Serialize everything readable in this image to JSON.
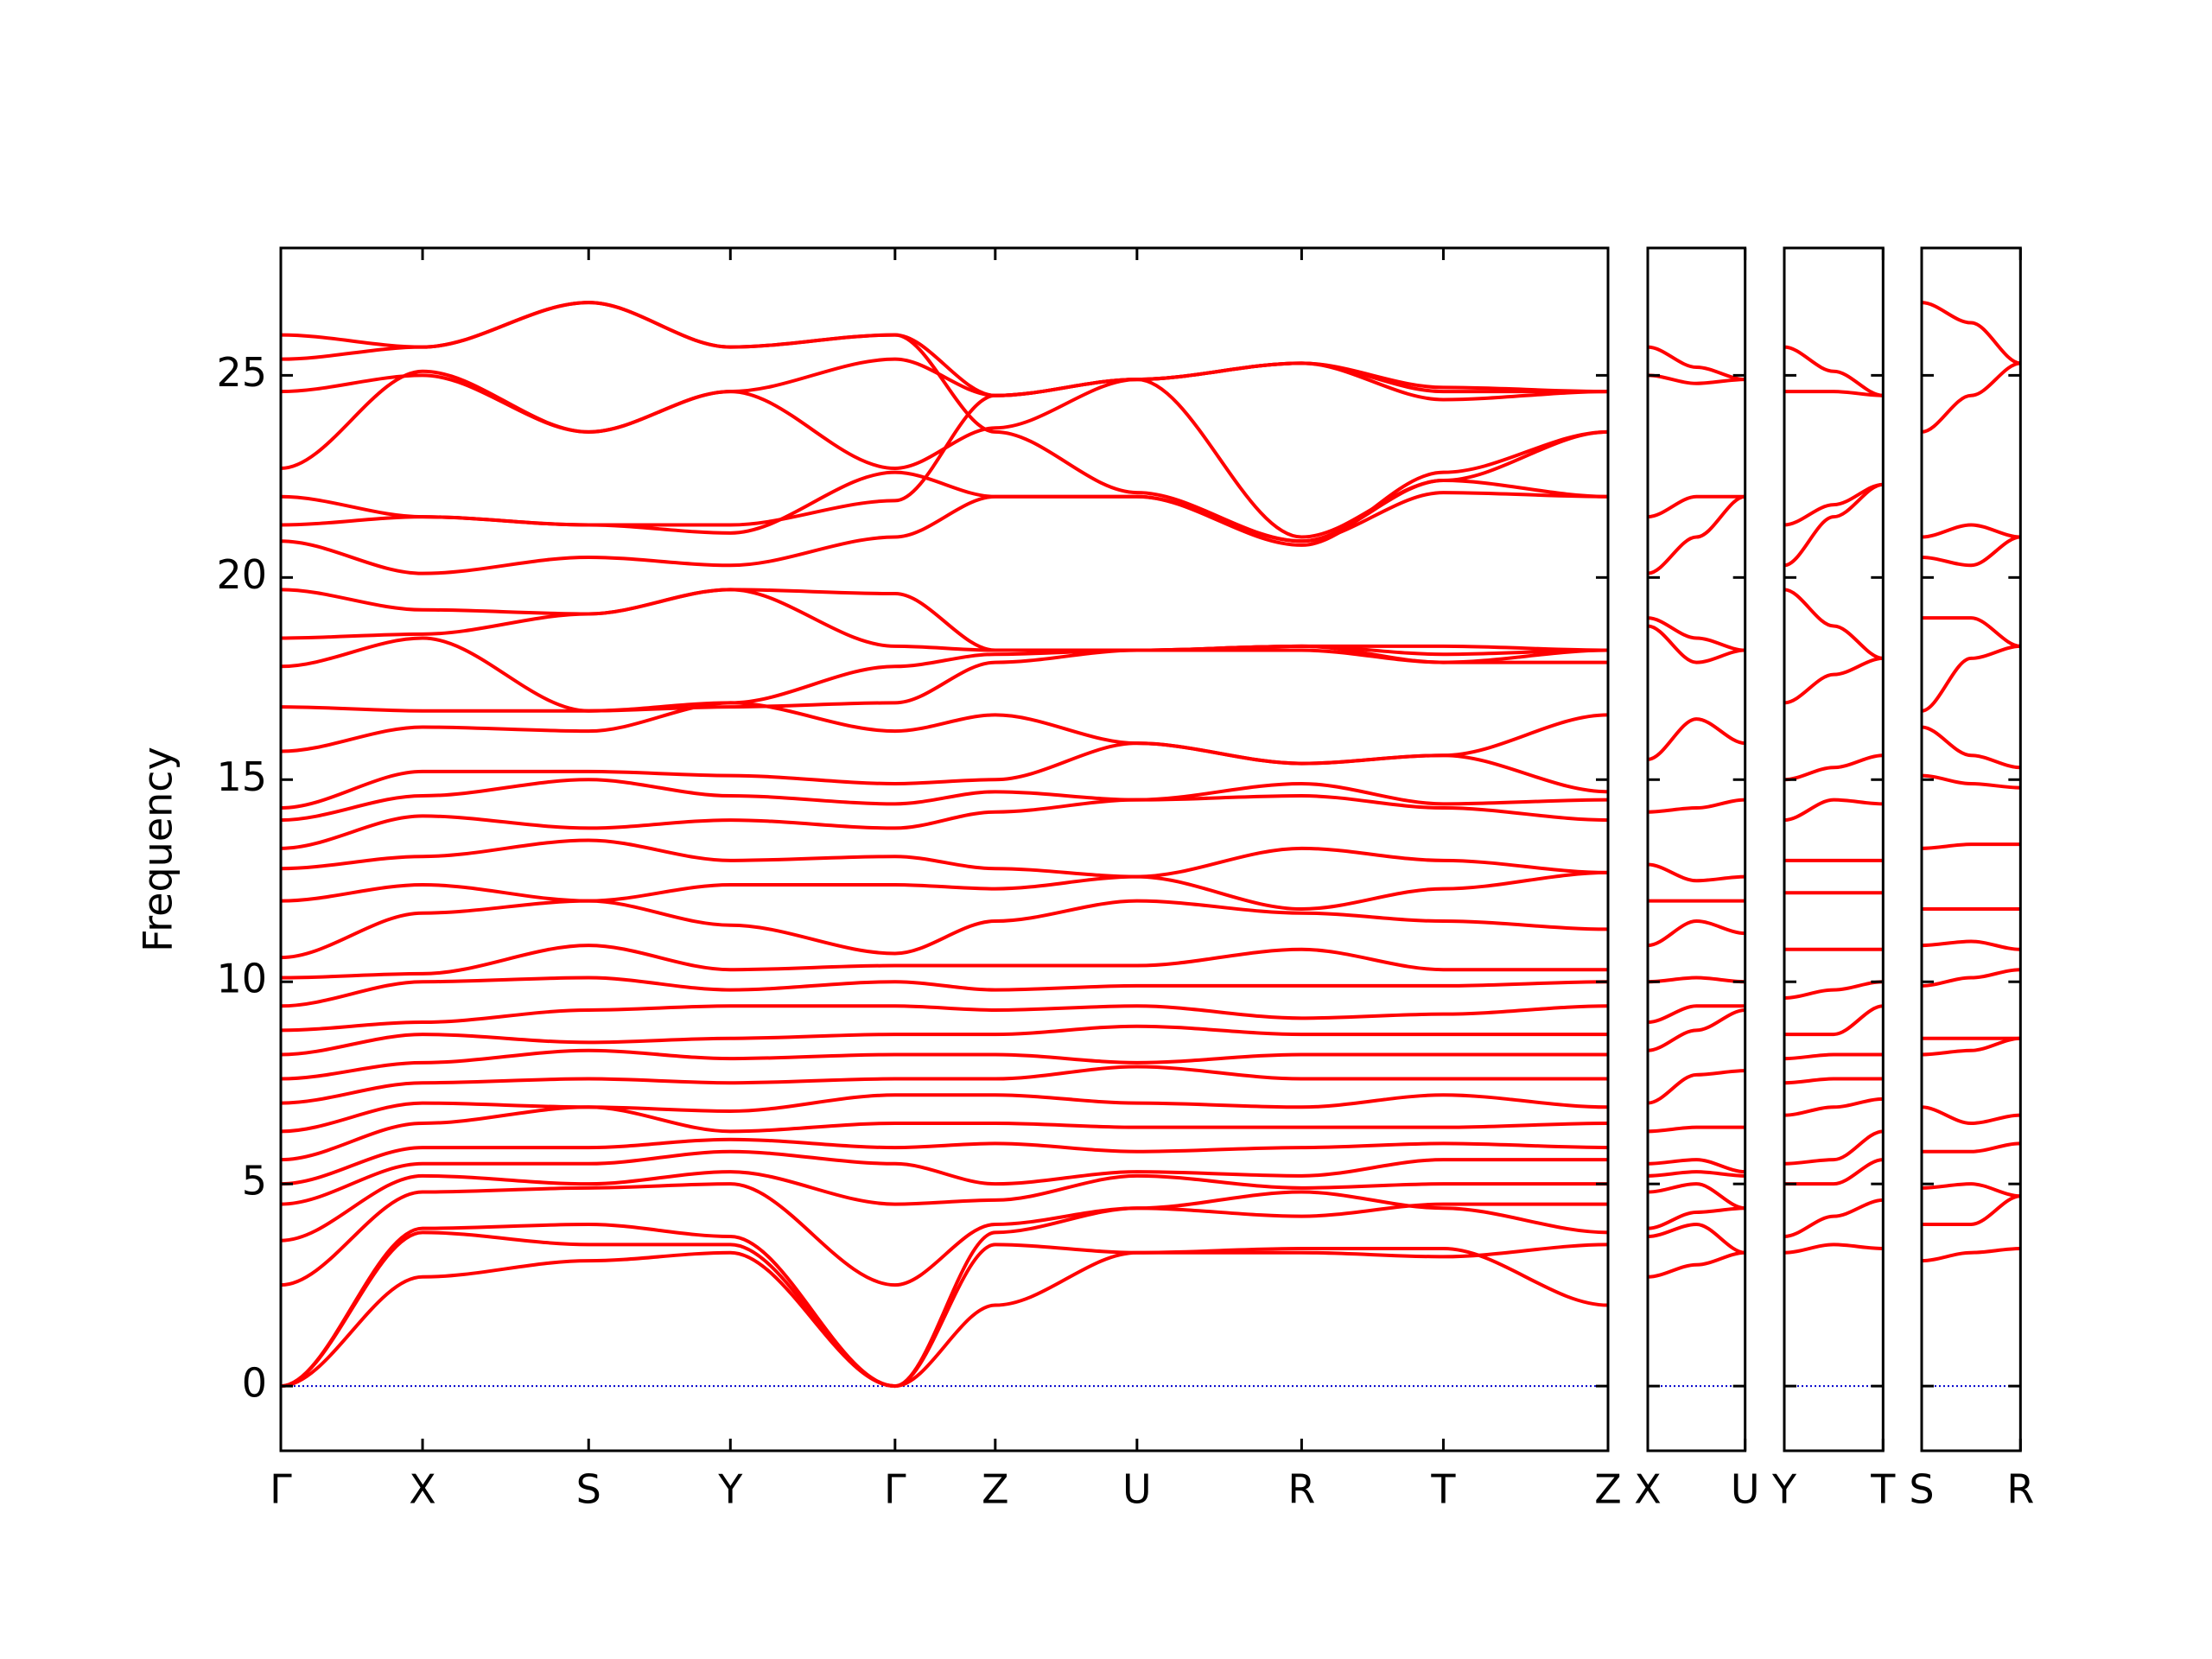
{
  "chart_data": [
    {
      "type": "line",
      "ylabel": "Frequency",
      "color": "#ff0000",
      "zero_line_color": "#0000cc",
      "ytick_labels": true,
      "x": [
        0,
        0.99,
        2.15,
        3.14,
        4.29,
        4.99,
        5.98,
        7.13,
        8.12,
        9.27
      ],
      "xlim": [
        0,
        9.27
      ],
      "ylim": [
        -1.6,
        28.15
      ],
      "yticks": [
        0,
        5,
        10,
        15,
        20,
        25
      ],
      "xticks": [
        {
          "value": 0,
          "label": "Γ"
        },
        {
          "value": 0.99,
          "label": "X"
        },
        {
          "value": 2.15,
          "label": "S"
        },
        {
          "value": 3.14,
          "label": "Y"
        },
        {
          "value": 4.29,
          "label": "Γ"
        },
        {
          "value": 4.99,
          "label": "Z"
        },
        {
          "value": 5.98,
          "label": "U"
        },
        {
          "value": 7.13,
          "label": "R"
        },
        {
          "value": 8.12,
          "label": "T"
        },
        {
          "value": 9.27,
          "label": "Z"
        }
      ],
      "series": [
        {
          "values": [
            0,
            2.7,
            3.1,
            3.3,
            0,
            2.0,
            3.3,
            3.4,
            3.4,
            2.0
          ]
        },
        {
          "values": [
            0,
            3.8,
            3.5,
            3.5,
            0,
            3.5,
            3.3,
            3.3,
            3.2,
            3.5
          ]
        },
        {
          "values": [
            0,
            3.9,
            4.0,
            3.7,
            0,
            3.8,
            4.4,
            4.8,
            4.4,
            3.8
          ]
        },
        {
          "values": [
            2.5,
            4.8,
            4.9,
            5.0,
            2.5,
            4.0,
            4.4,
            4.2,
            4.5,
            4.5
          ]
        },
        {
          "values": [
            3.6,
            5.2,
            5.0,
            5.3,
            4.5,
            4.6,
            5.2,
            4.9,
            5.0,
            5.0
          ]
        },
        {
          "values": [
            4.5,
            5.5,
            5.5,
            5.8,
            5.5,
            5.0,
            5.3,
            5.2,
            5.6,
            5.6
          ]
        },
        {
          "values": [
            5.0,
            5.9,
            5.9,
            6.1,
            5.9,
            6.0,
            5.8,
            5.9,
            6.0,
            5.9
          ]
        },
        {
          "values": [
            5.6,
            6.5,
            6.9,
            6.3,
            6.5,
            6.5,
            6.4,
            6.4,
            6.4,
            6.5
          ]
        },
        {
          "values": [
            6.3,
            7.0,
            6.9,
            6.8,
            7.2,
            7.2,
            7.0,
            6.9,
            7.2,
            6.9
          ]
        },
        {
          "values": [
            7.0,
            7.5,
            7.6,
            7.5,
            7.6,
            7.6,
            7.9,
            7.6,
            7.6,
            7.6
          ]
        },
        {
          "values": [
            7.6,
            8.0,
            8.3,
            8.1,
            8.2,
            8.2,
            8.0,
            8.2,
            8.2,
            8.2
          ]
        },
        {
          "values": [
            8.2,
            8.7,
            8.5,
            8.6,
            8.7,
            8.7,
            8.9,
            8.7,
            8.7,
            8.7
          ]
        },
        {
          "values": [
            8.8,
            9.0,
            9.3,
            9.4,
            9.4,
            9.3,
            9.4,
            9.1,
            9.2,
            9.4
          ]
        },
        {
          "values": [
            9.4,
            10.0,
            10.1,
            9.8,
            10.0,
            9.8,
            9.9,
            9.9,
            9.9,
            10.0
          ]
        },
        {
          "values": [
            10.1,
            10.2,
            10.9,
            10.3,
            10.4,
            10.4,
            10.4,
            10.8,
            10.3,
            10.3
          ]
        },
        {
          "values": [
            10.6,
            11.7,
            12.0,
            11.4,
            10.7,
            11.5,
            12.0,
            11.7,
            11.5,
            11.3
          ]
        },
        {
          "values": [
            12.0,
            12.4,
            12.0,
            12.4,
            12.4,
            12.3,
            12.6,
            11.8,
            12.3,
            12.7
          ]
        },
        {
          "values": [
            12.8,
            13.1,
            13.5,
            13.0,
            13.1,
            12.8,
            12.6,
            13.3,
            13.0,
            12.7
          ]
        },
        {
          "values": [
            13.3,
            14.1,
            13.8,
            14.0,
            13.8,
            14.2,
            14.5,
            14.6,
            14.3,
            14.0
          ]
        },
        {
          "values": [
            14.0,
            14.6,
            15.0,
            14.6,
            14.4,
            14.7,
            14.5,
            14.9,
            14.4,
            14.5
          ]
        },
        {
          "values": [
            14.3,
            15.2,
            15.2,
            15.1,
            14.9,
            15.0,
            15.9,
            15.4,
            15.6,
            14.7
          ]
        },
        {
          "values": [
            15.7,
            16.3,
            16.2,
            16.9,
            16.2,
            16.6,
            15.9,
            15.4,
            15.6,
            16.6
          ]
        },
        {
          "values": [
            16.8,
            16.7,
            16.7,
            16.8,
            16.9,
            17.9,
            18.2,
            18.2,
            17.9,
            17.9
          ]
        },
        {
          "values": [
            17.8,
            18.5,
            16.7,
            16.9,
            17.8,
            18.1,
            18.2,
            18.3,
            17.9,
            18.2
          ]
        },
        {
          "values": [
            18.5,
            18.6,
            19.1,
            19.7,
            18.3,
            18.2,
            18.2,
            18.3,
            18.1,
            18.2
          ]
        },
        {
          "values": [
            19.7,
            19.2,
            19.1,
            19.7,
            19.6,
            18.2,
            18.2,
            18.3,
            18.3,
            18.2
          ]
        },
        {
          "values": [
            20.9,
            20.1,
            20.5,
            20.3,
            21.0,
            22.0,
            22.0,
            20.9,
            22.4,
            22.0
          ]
        },
        {
          "values": [
            21.3,
            21.5,
            21.3,
            21.3,
            21.9,
            24.5,
            24.9,
            21.0,
            22.4,
            23.6
          ]
        },
        {
          "values": [
            22.0,
            21.5,
            21.3,
            21.1,
            22.6,
            22.0,
            22.0,
            20.8,
            22.6,
            23.6
          ]
        },
        {
          "values": [
            22.7,
            25.1,
            23.6,
            24.6,
            22.7,
            23.7,
            24.9,
            25.3,
            24.4,
            24.6
          ]
        },
        {
          "values": [
            24.6,
            25.0,
            23.6,
            24.6,
            25.4,
            24.5,
            24.9,
            25.3,
            24.6,
            24.6
          ]
        },
        {
          "values": [
            25.4,
            25.7,
            26.8,
            25.7,
            26.0,
            24.5,
            24.9,
            25.3,
            24.7,
            24.6
          ]
        },
        {
          "values": [
            26.0,
            25.7,
            26.8,
            25.7,
            26.0,
            23.6,
            22.1,
            20.9,
            22.1,
            22.0
          ]
        }
      ]
    },
    {
      "type": "line",
      "color": "#ff0000",
      "zero_line_color": "#0000cc",
      "ytick_labels": false,
      "x": [
        0,
        0.34,
        0.68
      ],
      "xlim": [
        0,
        0.68
      ],
      "ylim": [
        -1.6,
        28.15
      ],
      "yticks": [
        0,
        5,
        10,
        15,
        20,
        25
      ],
      "xticks": [
        {
          "value": 0,
          "label": "X"
        },
        {
          "value": 0.68,
          "label": "U"
        }
      ],
      "series": [
        {
          "values": [
            2.7,
            3.0,
            3.3
          ]
        },
        {
          "values": [
            3.7,
            4.0,
            3.3
          ]
        },
        {
          "values": [
            3.9,
            4.3,
            4.4
          ]
        },
        {
          "values": [
            4.8,
            5.0,
            4.4
          ]
        },
        {
          "values": [
            5.2,
            5.3,
            5.2
          ]
        },
        {
          "values": [
            5.5,
            5.6,
            5.3
          ]
        },
        {
          "values": [
            6.3,
            6.4,
            6.4
          ]
        },
        {
          "values": [
            7.0,
            7.7,
            7.8
          ]
        },
        {
          "values": [
            8.3,
            8.8,
            9.3
          ]
        },
        {
          "values": [
            9.0,
            9.4,
            9.4
          ]
        },
        {
          "values": [
            10.0,
            10.1,
            10.0
          ]
        },
        {
          "values": [
            10.9,
            11.5,
            11.2
          ]
        },
        {
          "values": [
            12.0,
            12.0,
            12.0
          ]
        },
        {
          "values": [
            12.9,
            12.5,
            12.6
          ]
        },
        {
          "values": [
            14.2,
            14.3,
            14.5
          ]
        },
        {
          "values": [
            15.5,
            16.5,
            15.9
          ]
        },
        {
          "values": [
            18.8,
            17.9,
            18.2
          ]
        },
        {
          "values": [
            19.0,
            18.5,
            18.2
          ]
        },
        {
          "values": [
            20.1,
            21.0,
            22.0
          ]
        },
        {
          "values": [
            21.5,
            22.0,
            22.0
          ]
        },
        {
          "values": [
            25.0,
            24.8,
            24.9
          ]
        },
        {
          "values": [
            25.7,
            25.2,
            24.9
          ]
        }
      ]
    },
    {
      "type": "line",
      "color": "#ff0000",
      "zero_line_color": "#0000cc",
      "ytick_labels": false,
      "x": [
        0,
        0.345,
        0.69
      ],
      "xlim": [
        0,
        0.69
      ],
      "ylim": [
        -1.6,
        28.15
      ],
      "yticks": [
        0,
        5,
        10,
        15,
        20,
        25
      ],
      "xticks": [
        {
          "value": 0,
          "label": "Y"
        },
        {
          "value": 0.69,
          "label": "T"
        }
      ],
      "series": [
        {
          "values": [
            3.3,
            3.5,
            3.4
          ]
        },
        {
          "values": [
            3.7,
            4.2,
            4.6
          ]
        },
        {
          "values": [
            5.0,
            5.0,
            5.6
          ]
        },
        {
          "values": [
            5.5,
            5.6,
            6.3
          ]
        },
        {
          "values": [
            6.7,
            6.9,
            7.1
          ]
        },
        {
          "values": [
            7.5,
            7.6,
            7.6
          ]
        },
        {
          "values": [
            8.1,
            8.2,
            8.2
          ]
        },
        {
          "values": [
            8.7,
            8.7,
            9.4
          ]
        },
        {
          "values": [
            9.6,
            9.8,
            10.0
          ]
        },
        {
          "values": [
            10.8,
            10.8,
            10.8
          ]
        },
        {
          "values": [
            12.2,
            12.2,
            12.2
          ]
        },
        {
          "values": [
            13.0,
            13.0,
            13.0
          ]
        },
        {
          "values": [
            14.0,
            14.5,
            14.4
          ]
        },
        {
          "values": [
            15.0,
            15.3,
            15.6
          ]
        },
        {
          "values": [
            16.9,
            17.6,
            18.0
          ]
        },
        {
          "values": [
            19.7,
            18.8,
            18.0
          ]
        },
        {
          "values": [
            20.3,
            21.5,
            22.3
          ]
        },
        {
          "values": [
            21.3,
            21.8,
            22.3
          ]
        },
        {
          "values": [
            24.6,
            24.6,
            24.5
          ]
        },
        {
          "values": [
            25.7,
            25.1,
            24.5
          ]
        }
      ]
    },
    {
      "type": "line",
      "color": "#ff0000",
      "zero_line_color": "#0000cc",
      "ytick_labels": false,
      "x": [
        0,
        0.345,
        0.69
      ],
      "xlim": [
        0,
        0.69
      ],
      "ylim": [
        -1.6,
        28.15
      ],
      "yticks": [
        0,
        5,
        10,
        15,
        20,
        25
      ],
      "xticks": [
        {
          "value": 0,
          "label": "S"
        },
        {
          "value": 0.69,
          "label": "R"
        }
      ],
      "series": [
        {
          "values": [
            3.1,
            3.3,
            3.4
          ]
        },
        {
          "values": [
            4.0,
            4.0,
            4.7
          ]
        },
        {
          "values": [
            4.9,
            5.0,
            4.7
          ]
        },
        {
          "values": [
            5.8,
            5.8,
            6.0
          ]
        },
        {
          "values": [
            6.9,
            6.5,
            6.7
          ]
        },
        {
          "values": [
            8.2,
            8.3,
            8.6
          ]
        },
        {
          "values": [
            8.6,
            8.6,
            8.6
          ]
        },
        {
          "values": [
            9.9,
            10.1,
            10.3
          ]
        },
        {
          "values": [
            10.9,
            11.0,
            10.8
          ]
        },
        {
          "values": [
            11.8,
            11.8,
            11.8
          ]
        },
        {
          "values": [
            13.3,
            13.4,
            13.4
          ]
        },
        {
          "values": [
            15.1,
            14.9,
            14.8
          ]
        },
        {
          "values": [
            16.3,
            15.6,
            15.3
          ]
        },
        {
          "values": [
            16.7,
            18.0,
            18.3
          ]
        },
        {
          "values": [
            19.0,
            19.0,
            18.3
          ]
        },
        {
          "values": [
            20.5,
            20.3,
            21.0
          ]
        },
        {
          "values": [
            21.0,
            21.3,
            21.0
          ]
        },
        {
          "values": [
            23.6,
            24.5,
            25.3
          ]
        },
        {
          "values": [
            26.8,
            26.3,
            25.3
          ]
        }
      ]
    }
  ]
}
